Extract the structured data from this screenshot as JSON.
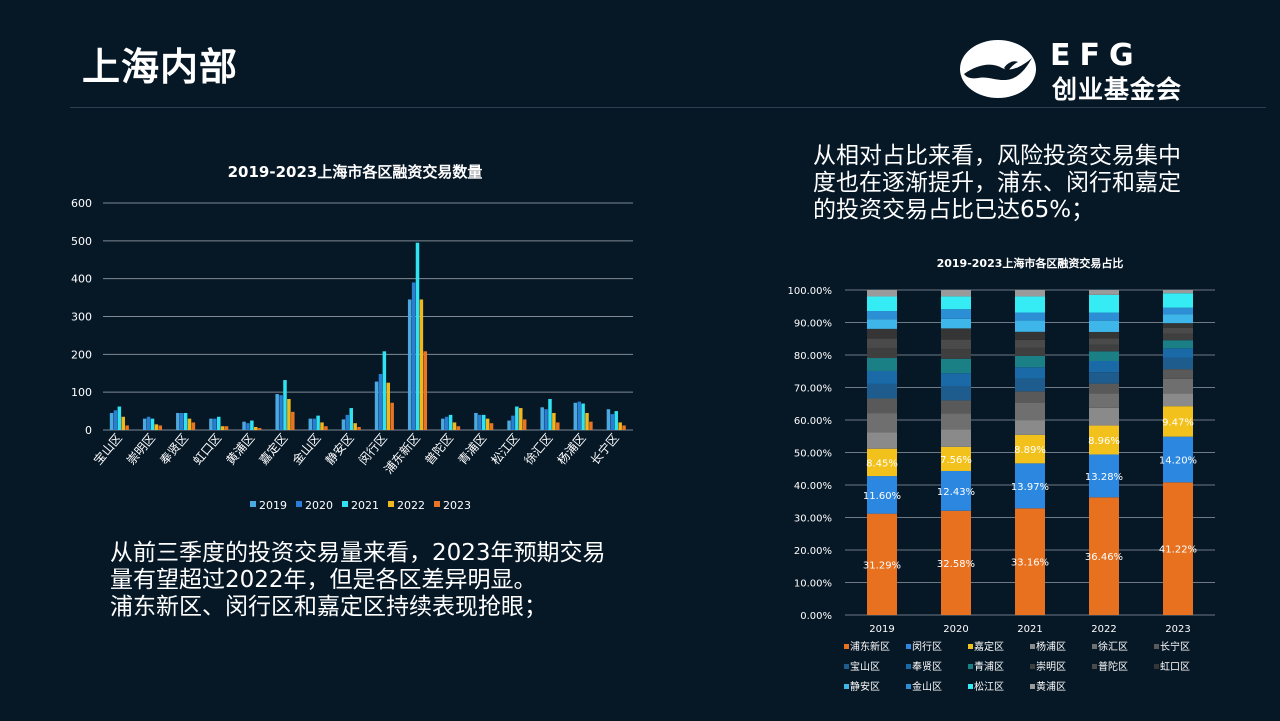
{
  "page": {
    "title": "上海内部",
    "logo": {
      "brand": "EFG",
      "name": "创业基金会"
    },
    "text_right": [
      "从相对占比来看，风险投资交易集中",
      "度也在逐渐提升，浦东、闵行和嘉定",
      "的投资交易占比已达65%；"
    ],
    "text_left": [
      "从前三季度的投资交易量来看，2023年预期交易",
      "量有望超过2022年，但是各区差异明显。",
      "浦东新区、闵行区和嘉定区持续表现抢眼；"
    ]
  },
  "colors": {
    "background": "#061726",
    "2019": "#4aa9e0",
    "2020": "#2a7fd4",
    "2021": "#2fe3f2",
    "2022": "#f0b81c",
    "2023": "#e87424"
  },
  "chart_data": [
    {
      "type": "bar",
      "title": "2019-2023上海市各区融资交易数量",
      "categories": [
        "宝山区",
        "崇明区",
        "奉贤区",
        "虹口区",
        "黄浦区",
        "嘉定区",
        "金山区",
        "静安区",
        "闵行区",
        "浦东新区",
        "普陀区",
        "青浦区",
        "松江区",
        "徐汇区",
        "杨浦区",
        "长宁区"
      ],
      "series": [
        {
          "name": "2019",
          "color": "#4aa9e0",
          "values": [
            45,
            30,
            45,
            30,
            22,
            95,
            30,
            28,
            128,
            345,
            30,
            45,
            25,
            60,
            72,
            55
          ]
        },
        {
          "name": "2020",
          "color": "#2a7fd4",
          "values": [
            52,
            35,
            45,
            30,
            18,
            92,
            30,
            40,
            148,
            390,
            35,
            40,
            38,
            55,
            75,
            42
          ]
        },
        {
          "name": "2021",
          "color": "#2fe3f2",
          "values": [
            62,
            30,
            45,
            35,
            25,
            132,
            38,
            58,
            208,
            495,
            40,
            40,
            62,
            82,
            70,
            50
          ]
        },
        {
          "name": "2022",
          "color": "#f0b81c",
          "values": [
            35,
            15,
            30,
            10,
            8,
            82,
            20,
            18,
            125,
            345,
            20,
            30,
            58,
            45,
            45,
            20
          ]
        },
        {
          "name": "2023",
          "color": "#e87424",
          "values": [
            12,
            12,
            20,
            10,
            5,
            48,
            10,
            8,
            72,
            208,
            10,
            18,
            28,
            20,
            22,
            12
          ]
        }
      ],
      "ylim": [
        0,
        600
      ],
      "yticks": [
        "0",
        "100",
        "200",
        "300",
        "400",
        "500",
        "600"
      ],
      "legend": "bottom"
    },
    {
      "type": "bar",
      "stacked": true,
      "title": "2019-2023上海市各区融资交易占比",
      "categories": [
        "2019",
        "2020",
        "2021",
        "2022",
        "2023"
      ],
      "ylim": [
        0,
        100
      ],
      "yticks": [
        "0.00%",
        "10.00%",
        "20.00%",
        "30.00%",
        "40.00%",
        "50.00%",
        "60.00%",
        "70.00%",
        "80.00%",
        "90.00%",
        "100.00%"
      ],
      "series": [
        {
          "name": "浦东新区",
          "color": "#e8711f",
          "values": [
            31.29,
            32.58,
            33.16,
            36.46,
            41.22
          ],
          "labels": [
            "31.29%",
            "32.58%",
            "33.16%",
            "36.46%",
            "41.22%"
          ]
        },
        {
          "name": "闵行区",
          "color": "#2c87e0",
          "values": [
            11.6,
            12.43,
            13.97,
            13.28,
            14.2
          ],
          "labels": [
            "11.60%",
            "12.43%",
            "13.97%",
            "13.28%",
            "14.20%"
          ]
        },
        {
          "name": "嘉定区",
          "color": "#f3c11c",
          "values": [
            8.45,
            7.56,
            8.89,
            8.96,
            9.47
          ],
          "labels": [
            "8.45%",
            "7.56%",
            "8.89%",
            "8.96%",
            "9.47%"
          ]
        },
        {
          "name": "杨浦区",
          "color": "#8a8a8a",
          "values": [
            5.0,
            5.5,
            4.5,
            5.5,
            4.0
          ]
        },
        {
          "name": "徐汇区",
          "color": "#6f6f6f",
          "values": [
            6.0,
            5.0,
            5.5,
            4.5,
            4.5
          ]
        },
        {
          "name": "长宁区",
          "color": "#595959",
          "values": [
            4.5,
            4.0,
            3.5,
            3.0,
            3.0
          ]
        },
        {
          "name": "宝山区",
          "color": "#1d5c8c",
          "values": [
            4.5,
            4.5,
            4.0,
            3.5,
            3.5
          ]
        },
        {
          "name": "奉贤区",
          "color": "#1a6aa8",
          "values": [
            4.0,
            4.0,
            3.5,
            3.5,
            3.0
          ]
        },
        {
          "name": "青浦区",
          "color": "#1b7f86",
          "values": [
            4.0,
            4.5,
            3.5,
            3.0,
            2.5
          ]
        },
        {
          "name": "崇明区",
          "color": "#3f3f3f",
          "values": [
            3.0,
            3.0,
            2.5,
            2.0,
            2.0
          ]
        },
        {
          "name": "普陀区",
          "color": "#4a4a4a",
          "values": [
            3.0,
            3.0,
            2.5,
            2.0,
            1.8
          ]
        },
        {
          "name": "虹口区",
          "color": "#353535",
          "values": [
            3.0,
            3.5,
            2.5,
            2.0,
            1.5
          ]
        },
        {
          "name": "静安区",
          "color": "#3fb6ea",
          "values": [
            3.0,
            3.0,
            3.5,
            3.5,
            2.8
          ]
        },
        {
          "name": "金山区",
          "color": "#2c8fd6",
          "values": [
            2.5,
            3.0,
            2.5,
            2.5,
            2.0
          ]
        },
        {
          "name": "松江区",
          "color": "#35ecf5",
          "values": [
            4.5,
            4.0,
            5.0,
            5.5,
            4.5
          ]
        },
        {
          "name": "黄浦区",
          "color": "#9a9a9a",
          "values": [
            2.0,
            2.0,
            2.0,
            1.5,
            1.0
          ]
        }
      ],
      "legend": "bottom"
    }
  ]
}
